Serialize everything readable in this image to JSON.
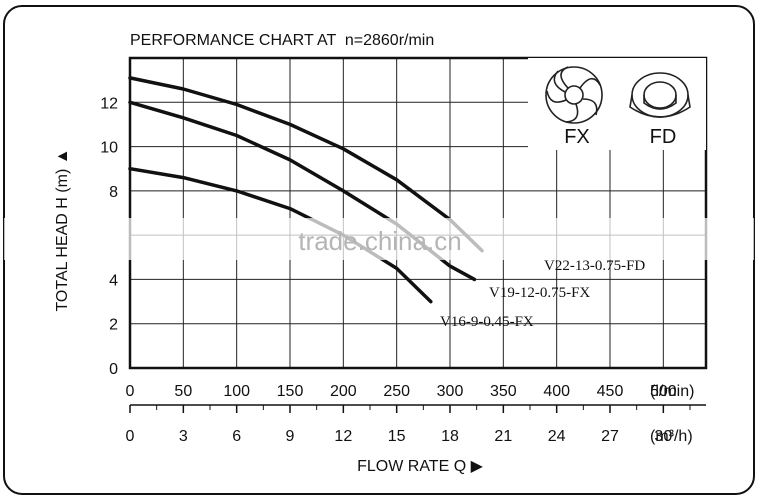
{
  "chart_data": {
    "type": "line",
    "title": "PERFORMANCE CHART AT  n=2860r/min",
    "ylabel": "TOTAL HEAD H (m) ▲",
    "xlabel": "FLOW RATE Q ▶",
    "x_unit_primary": "(l/min)",
    "x_unit_secondary": "(m³/h)",
    "xlim": [
      0,
      540
    ],
    "ylim": [
      0,
      14
    ],
    "x_ticks_lmin": [
      "0",
      "50",
      "100",
      "150",
      "200",
      "250",
      "300",
      "350",
      "400",
      "450",
      "500"
    ],
    "x_ticks_m3h": [
      "0",
      "3",
      "6",
      "9",
      "12",
      "15",
      "18",
      "21",
      "24",
      "27",
      "30"
    ],
    "y_ticks": [
      "0",
      "2",
      "4",
      "8",
      "10",
      "12"
    ],
    "grid": true,
    "series": [
      {
        "name": "V22-13-0.75-FD",
        "x": [
          0,
          50,
          100,
          150,
          200,
          250,
          300,
          330
        ],
        "y": [
          13.1,
          12.6,
          11.9,
          11.0,
          9.9,
          8.5,
          6.7,
          5.3
        ]
      },
      {
        "name": "V19-12-0.75-FX",
        "x": [
          0,
          50,
          100,
          150,
          200,
          250,
          300,
          323
        ],
        "y": [
          12.0,
          11.3,
          10.5,
          9.4,
          8.0,
          6.5,
          4.6,
          4.0
        ]
      },
      {
        "name": "V16-9-0.45-FX",
        "x": [
          0,
          50,
          100,
          150,
          200,
          250,
          282
        ],
        "y": [
          9.0,
          8.6,
          8.0,
          7.2,
          6.0,
          4.5,
          3.0
        ]
      }
    ],
    "inset": {
      "labels": [
        "FX",
        "FD"
      ]
    }
  },
  "watermark": "trade.china.cn"
}
